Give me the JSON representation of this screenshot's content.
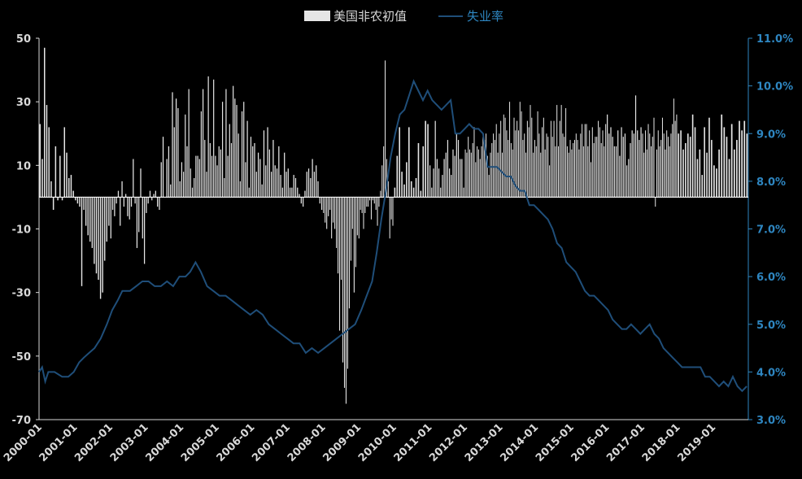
{
  "chart_data": {
    "type": "bar+line",
    "legend": {
      "bar_label": "美国非农初值",
      "line_label": "失业率",
      "placement": "top-center"
    },
    "colors": {
      "background": "#000000",
      "bars": "#e6e6e6",
      "line": "#1f4e79",
      "right_axis": "#2e86c1",
      "text": "#d9d9d9"
    },
    "y_left": {
      "min": -70,
      "max": 50,
      "ticks": [
        "50",
        "30",
        "10",
        "-10",
        "-30",
        "-50",
        "-70"
      ]
    },
    "y_right": {
      "min": 3.0,
      "max": 11.0,
      "ticks": [
        "11.0%",
        "10.0%",
        "9.0%",
        "8.0%",
        "7.0%",
        "6.0%",
        "5.0%",
        "4.0%",
        "3.0%"
      ]
    },
    "x_labels": [
      "2000-01",
      "2001-01",
      "2002-01",
      "2003-01",
      "2004-01",
      "2005-01",
      "2006-01",
      "2007-01",
      "2008-01",
      "2009-01",
      "2010-01",
      "2011-01",
      "2012-01",
      "2013-01",
      "2014-01",
      "2015-01",
      "2016-01",
      "2017-01",
      "2018-01",
      "2019-01"
    ],
    "yearly_payrolls": [
      [
        23,
        12,
        47,
        29,
        22,
        5,
        -4,
        16,
        -1,
        13,
        -1,
        22,
        14,
        6,
        7,
        2
      ],
      [
        -1,
        -2,
        -3,
        -28,
        -4,
        -9,
        -12,
        -14,
        -16,
        -21,
        -24,
        -26,
        -32,
        -30,
        -20,
        -14,
        -9
      ],
      [
        -13,
        -4,
        -6,
        -2,
        2,
        -9,
        5,
        -3,
        1,
        -6,
        -7,
        -3,
        12,
        -2,
        -16,
        -11,
        9,
        -13,
        -21
      ],
      [
        -5,
        -2,
        2,
        -1,
        1,
        2,
        -3,
        -4,
        11,
        19,
        0,
        12,
        16,
        4,
        33,
        22,
        31,
        28,
        5
      ],
      [
        11,
        8,
        26,
        16,
        34,
        9,
        3,
        6,
        13,
        13,
        12,
        27,
        34,
        18,
        8,
        38,
        17,
        13,
        37,
        13
      ],
      [
        10,
        16,
        15,
        30,
        6,
        34,
        13,
        23,
        17,
        35,
        31,
        29,
        20,
        5,
        27,
        30,
        11,
        24,
        3,
        19
      ],
      [
        16,
        17,
        8,
        14,
        12,
        4,
        21,
        10,
        22,
        15,
        8,
        18,
        10,
        9,
        16,
        7,
        3,
        14,
        8
      ],
      [
        9,
        3,
        3,
        7,
        6,
        3,
        1,
        -2,
        -3,
        2,
        8,
        9,
        6,
        12,
        8,
        10,
        5,
        -2,
        -4
      ],
      [
        -5,
        -8,
        -10,
        -6,
        -4,
        -13,
        -8,
        -10,
        -16,
        -24,
        -42,
        -26,
        -52,
        -60,
        -65,
        -54,
        -35,
        -20,
        -10,
        -30,
        -22,
        -12
      ],
      [
        -13,
        -4,
        -5,
        -10,
        -5,
        -3,
        -3,
        -1,
        -7,
        -1,
        -2,
        -4,
        -9,
        -3,
        2,
        10,
        16,
        43,
        12,
        5,
        -13,
        -7,
        -9
      ],
      [
        3,
        13,
        22,
        8,
        4,
        11,
        22,
        5,
        3,
        6,
        17,
        2,
        16,
        24,
        23
      ],
      [
        10,
        3,
        9,
        24,
        12,
        9,
        3,
        7,
        12,
        14,
        18,
        9,
        7,
        15,
        13,
        20,
        18,
        12,
        12,
        3
      ],
      [
        15,
        14,
        19,
        15,
        14,
        17,
        22,
        11,
        16,
        15,
        12,
        16,
        19,
        18,
        20,
        13,
        7,
        14,
        17,
        20,
        18,
        23,
        14,
        20
      ],
      [
        24,
        14,
        26,
        25,
        21,
        18,
        30,
        17,
        15,
        25,
        21,
        24,
        21,
        30,
        27,
        18,
        20,
        14,
        24,
        22,
        29,
        25,
        14,
        18
      ],
      [
        16,
        27,
        20,
        14,
        22,
        25,
        15,
        20,
        19,
        10,
        24,
        19,
        24,
        16,
        29,
        16,
        24,
        29,
        20,
        19,
        28,
        16,
        14,
        18
      ],
      [
        15,
        17,
        18,
        20,
        18,
        15,
        20,
        23,
        16,
        23,
        23,
        16,
        21,
        11,
        22,
        17,
        19,
        19,
        24,
        22,
        17,
        21,
        16,
        23
      ],
      [
        26,
        20,
        22,
        19,
        16,
        16,
        21,
        13,
        22,
        19,
        20,
        10,
        12,
        17,
        21,
        20,
        32,
        21,
        18,
        22
      ],
      [
        20,
        14,
        21,
        15,
        23,
        20,
        16,
        19,
        25,
        -3,
        15,
        21,
        16,
        18,
        25,
        20,
        15,
        21,
        19,
        16,
        20,
        23,
        31,
        24,
        26
      ],
      [
        20,
        21,
        15,
        17,
        20,
        19,
        26,
        22,
        12,
        15,
        7,
        22,
        14,
        25,
        18
      ],
      [
        10,
        9,
        15,
        26,
        22,
        19,
        12,
        23,
        15,
        18,
        24,
        21,
        24,
        20
      ]
    ],
    "unemployment_points": [
      [
        0,
        4.0
      ],
      [
        4,
        4.1
      ],
      [
        8,
        3.8
      ],
      [
        12,
        4.0
      ],
      [
        20,
        4.0
      ],
      [
        30,
        3.9
      ],
      [
        38,
        3.9
      ],
      [
        45,
        4.0
      ],
      [
        52,
        4.2
      ],
      [
        58,
        4.3
      ],
      [
        65,
        4.4
      ],
      [
        72,
        4.5
      ],
      [
        80,
        4.7
      ],
      [
        88,
        5.0
      ],
      [
        95,
        5.3
      ],
      [
        102,
        5.5
      ],
      [
        108,
        5.7
      ],
      [
        118,
        5.7
      ],
      [
        126,
        5.8
      ],
      [
        134,
        5.9
      ],
      [
        142,
        5.9
      ],
      [
        150,
        5.8
      ],
      [
        158,
        5.8
      ],
      [
        166,
        5.9
      ],
      [
        174,
        5.8
      ],
      [
        182,
        6.0
      ],
      [
        190,
        6.0
      ],
      [
        196,
        6.1
      ],
      [
        203,
        6.3
      ],
      [
        210,
        6.1
      ],
      [
        218,
        5.8
      ],
      [
        226,
        5.7
      ],
      [
        234,
        5.6
      ],
      [
        242,
        5.6
      ],
      [
        250,
        5.5
      ],
      [
        258,
        5.4
      ],
      [
        266,
        5.3
      ],
      [
        274,
        5.2
      ],
      [
        282,
        5.3
      ],
      [
        290,
        5.2
      ],
      [
        298,
        5.0
      ],
      [
        306,
        4.9
      ],
      [
        314,
        4.8
      ],
      [
        322,
        4.7
      ],
      [
        330,
        4.6
      ],
      [
        338,
        4.6
      ],
      [
        346,
        4.4
      ],
      [
        354,
        4.5
      ],
      [
        362,
        4.4
      ],
      [
        370,
        4.5
      ],
      [
        378,
        4.6
      ],
      [
        386,
        4.7
      ],
      [
        394,
        4.8
      ],
      [
        402,
        4.9
      ],
      [
        410,
        5.0
      ],
      [
        418,
        5.3
      ],
      [
        425,
        5.6
      ],
      [
        432,
        5.9
      ],
      [
        438,
        6.5
      ],
      [
        444,
        7.2
      ],
      [
        450,
        7.8
      ],
      [
        456,
        8.5
      ],
      [
        462,
        9.0
      ],
      [
        468,
        9.4
      ],
      [
        474,
        9.5
      ],
      [
        480,
        9.8
      ],
      [
        486,
        10.1
      ],
      [
        492,
        9.9
      ],
      [
        498,
        9.7
      ],
      [
        504,
        9.9
      ],
      [
        510,
        9.7
      ],
      [
        516,
        9.6
      ],
      [
        522,
        9.5
      ],
      [
        528,
        9.6
      ],
      [
        534,
        9.7
      ],
      [
        540,
        9.0
      ],
      [
        546,
        9.0
      ],
      [
        552,
        9.1
      ],
      [
        558,
        9.2
      ],
      [
        564,
        9.1
      ],
      [
        570,
        9.1
      ],
      [
        576,
        9.0
      ],
      [
        582,
        8.3
      ],
      [
        588,
        8.3
      ],
      [
        594,
        8.3
      ],
      [
        600,
        8.2
      ],
      [
        606,
        8.1
      ],
      [
        612,
        8.1
      ],
      [
        618,
        7.9
      ],
      [
        624,
        7.8
      ],
      [
        630,
        7.8
      ],
      [
        636,
        7.5
      ],
      [
        642,
        7.5
      ],
      [
        648,
        7.4
      ],
      [
        654,
        7.3
      ],
      [
        660,
        7.2
      ],
      [
        666,
        7.0
      ],
      [
        672,
        6.7
      ],
      [
        678,
        6.6
      ],
      [
        684,
        6.3
      ],
      [
        690,
        6.2
      ],
      [
        696,
        6.1
      ],
      [
        702,
        5.9
      ],
      [
        708,
        5.7
      ],
      [
        714,
        5.6
      ],
      [
        720,
        5.6
      ],
      [
        726,
        5.5
      ],
      [
        732,
        5.4
      ],
      [
        738,
        5.3
      ],
      [
        744,
        5.1
      ],
      [
        750,
        5.0
      ],
      [
        756,
        4.9
      ],
      [
        762,
        4.9
      ],
      [
        768,
        5.0
      ],
      [
        774,
        4.9
      ],
      [
        780,
        4.8
      ],
      [
        786,
        4.9
      ],
      [
        792,
        5.0
      ],
      [
        798,
        4.8
      ],
      [
        804,
        4.7
      ],
      [
        810,
        4.5
      ],
      [
        816,
        4.4
      ],
      [
        822,
        4.3
      ],
      [
        828,
        4.2
      ],
      [
        834,
        4.1
      ],
      [
        840,
        4.1
      ],
      [
        846,
        4.1
      ],
      [
        852,
        4.1
      ],
      [
        858,
        4.1
      ],
      [
        864,
        3.9
      ],
      [
        870,
        3.9
      ],
      [
        876,
        3.8
      ],
      [
        882,
        3.7
      ],
      [
        888,
        3.8
      ],
      [
        894,
        3.7
      ],
      [
        900,
        3.9
      ],
      [
        906,
        3.7
      ],
      [
        912,
        3.6
      ],
      [
        918,
        3.7
      ]
    ]
  }
}
